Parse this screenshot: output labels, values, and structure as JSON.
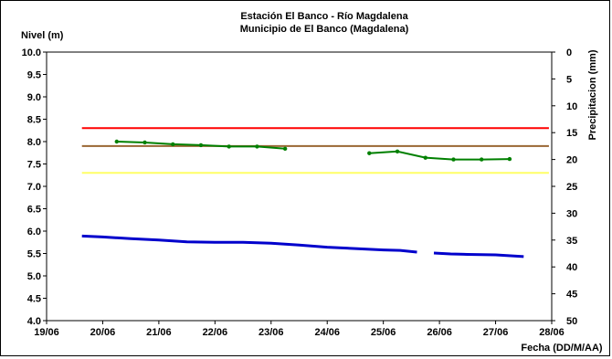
{
  "chart_data": {
    "type": "line",
    "title": "Estación El Banco - Río Magdalena",
    "subtitle": "Municipio de El Banco (Magdalena)",
    "xlabel": "Fecha (DD/M/AA)",
    "ylabel_left": "Nivel (m)",
    "ylabel_right": "Precipitacion (mm)",
    "x_ticks": [
      "19/06",
      "20/06",
      "21/06",
      "22/06",
      "23/06",
      "24/06",
      "25/06",
      "26/06",
      "27/06",
      "28/06"
    ],
    "xlim": [
      0,
      9
    ],
    "ylim_left": [
      4.0,
      10.0
    ],
    "y_ticks_left": [
      "4.0",
      "4.5",
      "5.0",
      "5.5",
      "6.0",
      "6.5",
      "7.0",
      "7.5",
      "8.0",
      "8.5",
      "9.0",
      "9.5",
      "10.0"
    ],
    "ylim_right": [
      50,
      0
    ],
    "y_ticks_right": [
      "0",
      "5",
      "10",
      "15",
      "20",
      "25",
      "30",
      "35",
      "40",
      "45",
      "50"
    ],
    "grid": false,
    "thresholds": [
      {
        "value": 8.3,
        "color": "#ff0000"
      },
      {
        "value": 7.9,
        "color": "#996633"
      },
      {
        "value": 7.3,
        "color": "#ffff66"
      }
    ],
    "series": [
      {
        "color": "#008000",
        "segments": [
          [
            [
              1.25,
              8.0
            ],
            [
              1.75,
              7.98
            ],
            [
              2.25,
              7.94
            ],
            [
              2.75,
              7.92
            ],
            [
              3.25,
              7.89
            ],
            [
              3.75,
              7.89
            ],
            [
              4.25,
              7.84
            ]
          ],
          [
            [
              5.75,
              7.74
            ],
            [
              6.25,
              7.78
            ],
            [
              6.75,
              7.64
            ],
            [
              7.25,
              7.6
            ],
            [
              7.75,
              7.6
            ],
            [
              8.25,
              7.61
            ]
          ]
        ]
      },
      {
        "color": "#0000cc",
        "segments": [
          [
            [
              0.63,
              5.89
            ],
            [
              1.0,
              5.87
            ],
            [
              1.5,
              5.83
            ],
            [
              2.0,
              5.8
            ],
            [
              2.5,
              5.76
            ],
            [
              3.0,
              5.75
            ],
            [
              3.5,
              5.75
            ],
            [
              4.0,
              5.73
            ],
            [
              4.5,
              5.69
            ],
            [
              5.0,
              5.64
            ],
            [
              5.5,
              5.61
            ],
            [
              6.0,
              5.58
            ],
            [
              6.3,
              5.57
            ],
            [
              6.6,
              5.53
            ]
          ],
          [
            [
              6.9,
              5.51
            ],
            [
              7.2,
              5.49
            ],
            [
              7.5,
              5.48
            ],
            [
              8.0,
              5.47
            ],
            [
              8.5,
              5.43
            ]
          ]
        ]
      }
    ]
  }
}
